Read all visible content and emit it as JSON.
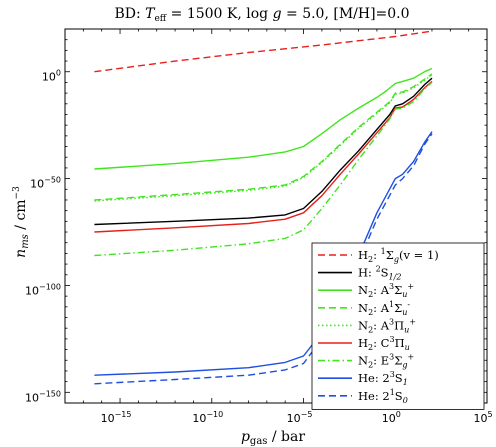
{
  "chart_data": {
    "type": "line",
    "title": "BD: T_eff = 1500 K, log g = 5.0, [M/H]=0.0",
    "xlabel": "p_gas / bar",
    "ylabel": "n_ms / cm^-3",
    "xscale": "log",
    "yscale": "log",
    "xlim_exp": [
      -18,
      5
    ],
    "ylim_exp": [
      -155,
      20
    ],
    "x_ticks": [
      {
        "exp": -15,
        "label": "10^-15"
      },
      {
        "exp": -10,
        "label": "10^-10"
      },
      {
        "exp": -5,
        "label": "10^-5"
      },
      {
        "exp": 0,
        "label": "10^0"
      },
      {
        "exp": 5,
        "label": "10^5"
      }
    ],
    "y_ticks": [
      {
        "exp": 0,
        "label": "10^0"
      },
      {
        "exp": -50,
        "label": "10^-50"
      },
      {
        "exp": -100,
        "label": "10^-100"
      },
      {
        "exp": -150,
        "label": "10^-150"
      }
    ],
    "legend_position": "lower-right",
    "grid": false,
    "series": [
      {
        "name": "H2: 1Σg(v = 1)",
        "color": "#e8201c",
        "dash": "dashed",
        "points": [
          [
            -16.4,
            0
          ],
          [
            -12,
            5
          ],
          [
            -8,
            9
          ],
          [
            -4,
            12.5
          ],
          [
            0,
            16.5
          ],
          [
            2,
            19
          ]
        ]
      },
      {
        "name": "H: 2S1/2",
        "color": "#000000",
        "dash": "solid",
        "points": [
          [
            -16.4,
            -71.5
          ],
          [
            -12,
            -70
          ],
          [
            -8,
            -68.5
          ],
          [
            -6,
            -67
          ],
          [
            -5,
            -64
          ],
          [
            -4,
            -56
          ],
          [
            -3,
            -46
          ],
          [
            -2,
            -37
          ],
          [
            -1,
            -27
          ],
          [
            -0.3,
            -20
          ],
          [
            0,
            -16
          ],
          [
            0.4,
            -15
          ],
          [
            1,
            -11.5
          ],
          [
            1.6,
            -6
          ],
          [
            2,
            -3
          ]
        ]
      },
      {
        "name": "N2: A3Σu+",
        "color": "#3fe61d",
        "dash": "solid",
        "points": [
          [
            -16.4,
            -45.5
          ],
          [
            -12,
            -43
          ],
          [
            -8,
            -40
          ],
          [
            -6,
            -37.5
          ],
          [
            -5,
            -35
          ],
          [
            -4,
            -29
          ],
          [
            -3,
            -22.5
          ],
          [
            -2,
            -17
          ],
          [
            -1,
            -12
          ],
          [
            -0.5,
            -9
          ],
          [
            0,
            -5.5
          ],
          [
            0.4,
            -4.5
          ],
          [
            1,
            -3
          ],
          [
            1.6,
            0
          ],
          [
            2,
            1.5
          ]
        ]
      },
      {
        "name": "N2: A1Σu-",
        "color": "#3fe61d",
        "dash": "dashed",
        "points": [
          [
            -16.4,
            -60
          ],
          [
            -12,
            -57.5
          ],
          [
            -8,
            -55
          ],
          [
            -6,
            -53
          ],
          [
            -5,
            -49
          ],
          [
            -4,
            -42
          ],
          [
            -3,
            -34
          ],
          [
            -2,
            -26
          ],
          [
            -1,
            -19
          ],
          [
            -0.3,
            -14
          ],
          [
            0,
            -10
          ],
          [
            0.4,
            -9.5
          ],
          [
            1,
            -7
          ],
          [
            1.6,
            -3.5
          ],
          [
            2,
            -1
          ]
        ]
      },
      {
        "name": "N2: A3Πu+",
        "color": "#3fe61d",
        "dash": "dotted",
        "points": [
          [
            -16.4,
            -60.5
          ],
          [
            -12,
            -58
          ],
          [
            -8,
            -55.5
          ],
          [
            -6,
            -53.5
          ],
          [
            -5,
            -49.5
          ],
          [
            -4,
            -42.5
          ],
          [
            -3,
            -34.5
          ],
          [
            -2,
            -26.5
          ],
          [
            -1,
            -19.5
          ],
          [
            -0.3,
            -14.5
          ],
          [
            0,
            -10.5
          ],
          [
            0.4,
            -10
          ],
          [
            1,
            -7.5
          ],
          [
            1.6,
            -4
          ],
          [
            2,
            -1.5
          ]
        ]
      },
      {
        "name": "H2: C3Πu",
        "color": "#e8201c",
        "dash": "solid",
        "points": [
          [
            -16.4,
            -75
          ],
          [
            -12,
            -73
          ],
          [
            -8,
            -71
          ],
          [
            -6,
            -69
          ],
          [
            -5,
            -66
          ],
          [
            -4,
            -58
          ],
          [
            -3,
            -48
          ],
          [
            -2,
            -38.5
          ],
          [
            -1,
            -28.5
          ],
          [
            -0.3,
            -21.5
          ],
          [
            0,
            -17
          ],
          [
            0.4,
            -16.5
          ],
          [
            1,
            -13
          ],
          [
            1.6,
            -7.5
          ],
          [
            2,
            -4.5
          ]
        ]
      },
      {
        "name": "N2: E3Σg+",
        "color": "#3fe61d",
        "dash": "dashdot",
        "points": [
          [
            -16.4,
            -86
          ],
          [
            -12,
            -83.5
          ],
          [
            -8,
            -80.5
          ],
          [
            -6,
            -78
          ],
          [
            -5,
            -74
          ],
          [
            -4,
            -64
          ],
          [
            -3,
            -53
          ],
          [
            -2,
            -41
          ],
          [
            -1,
            -30
          ],
          [
            -0.3,
            -22
          ],
          [
            0,
            -17.5
          ],
          [
            0.4,
            -17
          ],
          [
            1,
            -14
          ],
          [
            1.6,
            -8
          ],
          [
            2,
            -5
          ]
        ]
      },
      {
        "name": "He: 2 3S1",
        "color": "#1e4fe0",
        "dash": "solid",
        "points": [
          [
            -16.4,
            -142
          ],
          [
            -12,
            -140.5
          ],
          [
            -8,
            -138.5
          ],
          [
            -6,
            -136
          ],
          [
            -5,
            -133
          ],
          [
            -4,
            -122
          ],
          [
            -3,
            -104
          ],
          [
            -2,
            -86
          ],
          [
            -1,
            -66
          ],
          [
            0,
            -50
          ],
          [
            0.4,
            -48
          ],
          [
            1,
            -42
          ],
          [
            1.6,
            -33
          ],
          [
            2,
            -28
          ]
        ]
      },
      {
        "name": "He: 2 1S0",
        "color": "#1e4fe0",
        "dash": "dashed",
        "points": [
          [
            -16.4,
            -146
          ],
          [
            -12,
            -144
          ],
          [
            -8,
            -142
          ],
          [
            -6,
            -139.5
          ],
          [
            -5,
            -136.5
          ],
          [
            -4,
            -125
          ],
          [
            -3,
            -107
          ],
          [
            -2,
            -89
          ],
          [
            -1,
            -69
          ],
          [
            0,
            -53
          ],
          [
            0.4,
            -50
          ],
          [
            1,
            -44
          ],
          [
            1.6,
            -34
          ],
          [
            2,
            -29
          ]
        ]
      }
    ]
  }
}
